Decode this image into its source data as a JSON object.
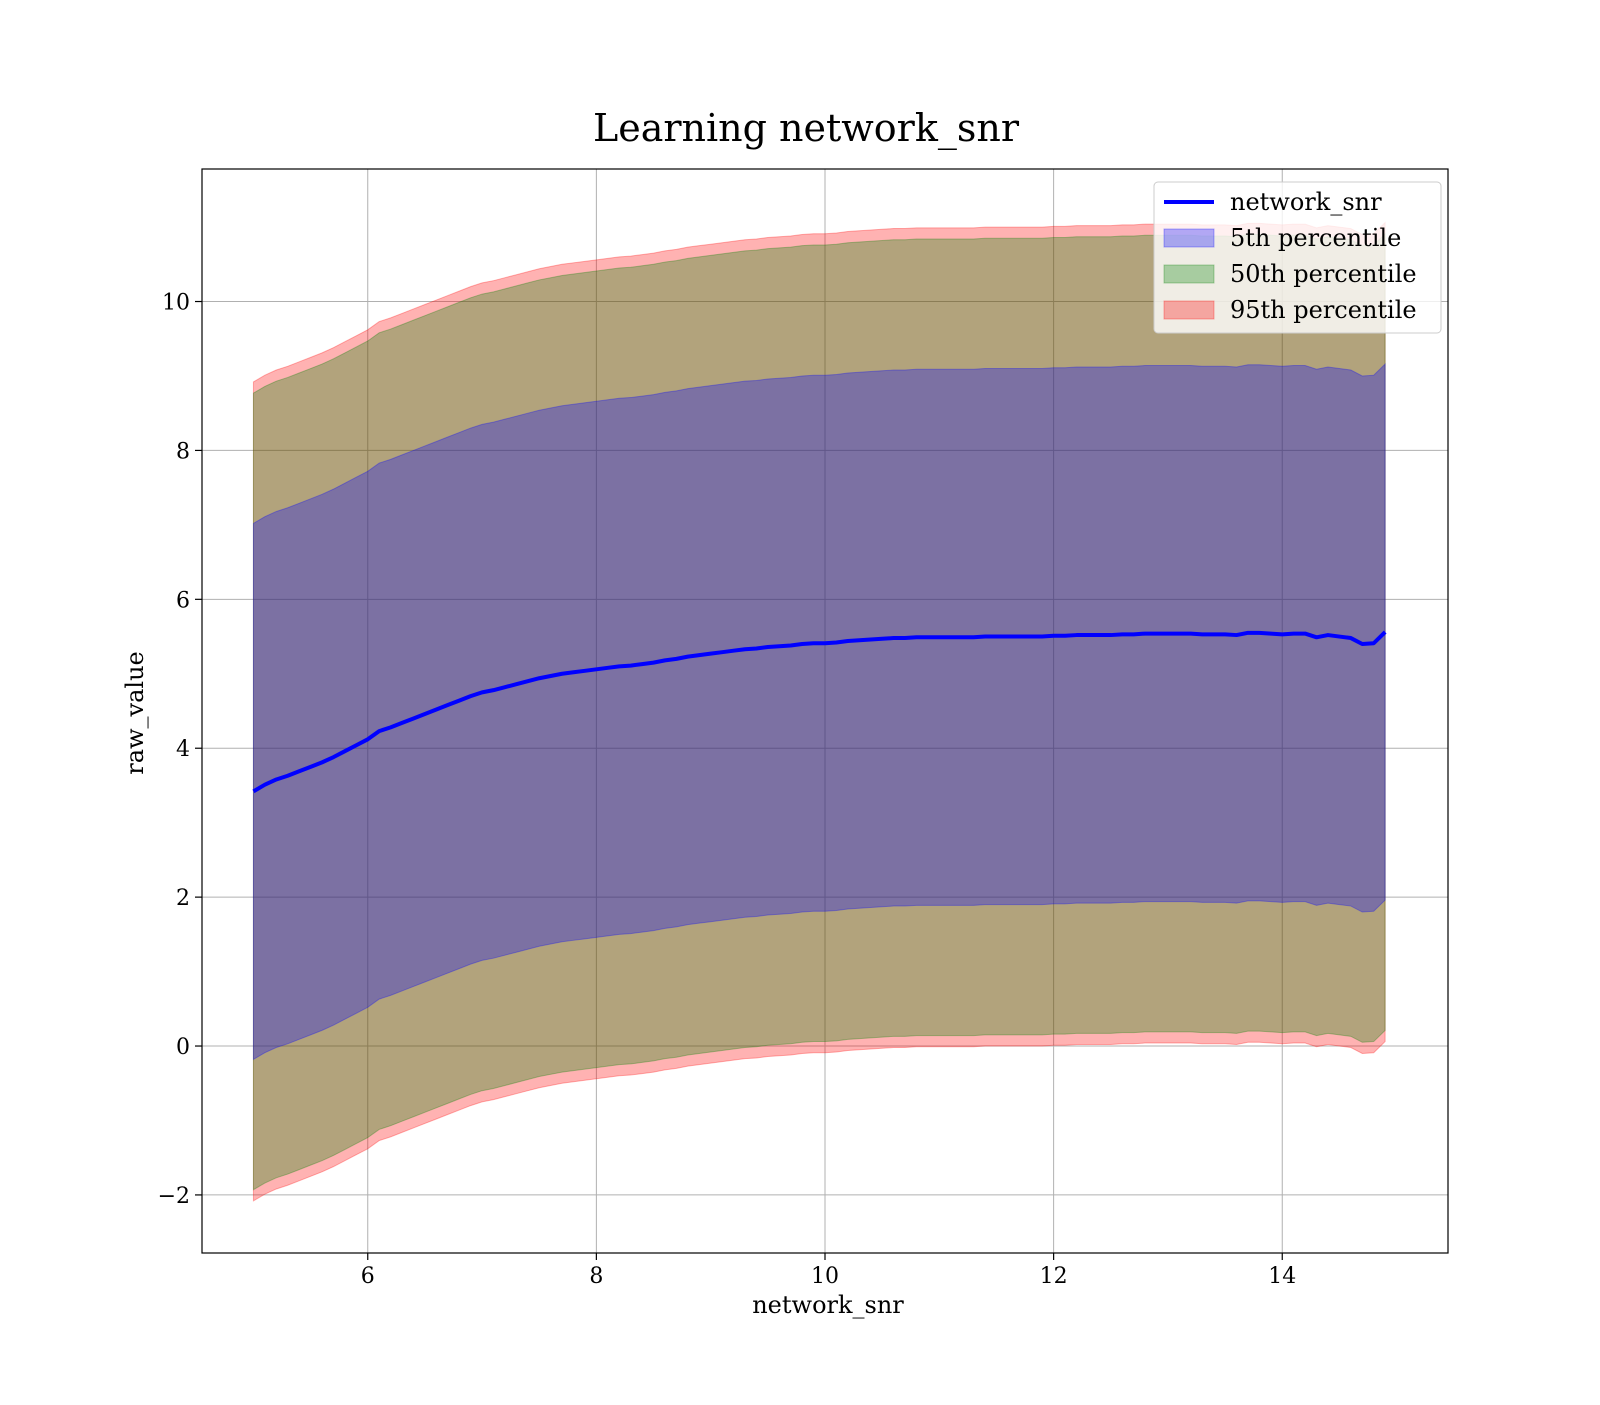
{
  "chart_data": {
    "type": "area",
    "title": "Learning network_snr",
    "xlabel": "network_snr",
    "ylabel": "raw_value",
    "xlim": [
      4.55,
      15.45
    ],
    "ylim": [
      -2.78,
      11.78
    ],
    "xticks": [
      6,
      8,
      10,
      12,
      14
    ],
    "yticks": [
      -2,
      0,
      2,
      4,
      6,
      8,
      10
    ],
    "xtick_labels": [
      "6",
      "8",
      "10",
      "12",
      "14"
    ],
    "ytick_labels": [
      "−2",
      "0",
      "2",
      "4",
      "6",
      "8",
      "10"
    ],
    "grid": true,
    "legend_position": "top-right",
    "x": [
      5.0,
      5.1,
      5.2,
      5.3,
      5.4,
      5.5,
      5.6,
      5.7,
      5.8,
      5.9,
      6.0,
      6.1,
      6.2,
      6.3,
      6.4,
      6.5,
      6.6,
      6.7,
      6.8,
      6.9,
      7.0,
      7.1,
      7.2,
      7.3,
      7.4,
      7.5,
      7.6,
      7.7,
      7.8,
      7.9,
      8.0,
      8.1,
      8.2,
      8.3,
      8.4,
      8.5,
      8.6,
      8.7,
      8.8,
      8.9,
      9.0,
      9.1,
      9.2,
      9.3,
      9.4,
      9.5,
      9.6,
      9.7,
      9.8,
      9.9,
      10.0,
      10.1,
      10.2,
      10.3,
      10.4,
      10.5,
      10.6,
      10.7,
      10.8,
      10.9,
      11.0,
      11.1,
      11.2,
      11.3,
      11.4,
      11.5,
      11.6,
      11.7,
      11.8,
      11.9,
      12.0,
      12.1,
      12.2,
      12.3,
      12.4,
      12.5,
      12.6,
      12.7,
      12.8,
      12.9,
      13.0,
      13.1,
      13.2,
      13.3,
      13.4,
      13.5,
      13.6,
      13.7,
      13.8,
      13.9,
      14.0,
      14.1,
      14.2,
      14.3,
      14.4,
      14.5,
      14.6,
      14.7,
      14.8,
      14.9
    ],
    "series": [
      {
        "name": "network_snr",
        "kind": "line",
        "color": "#0000ff",
        "values": [
          3.42,
          3.51,
          3.58,
          3.63,
          3.69,
          3.75,
          3.81,
          3.88,
          3.96,
          4.04,
          4.12,
          4.23,
          4.28,
          4.34,
          4.4,
          4.46,
          4.52,
          4.58,
          4.64,
          4.7,
          4.75,
          4.78,
          4.82,
          4.86,
          4.9,
          4.94,
          4.97,
          5.0,
          5.02,
          5.04,
          5.06,
          5.08,
          5.1,
          5.11,
          5.13,
          5.15,
          5.18,
          5.2,
          5.23,
          5.25,
          5.27,
          5.29,
          5.31,
          5.33,
          5.34,
          5.36,
          5.37,
          5.38,
          5.4,
          5.41,
          5.41,
          5.42,
          5.44,
          5.45,
          5.46,
          5.47,
          5.48,
          5.48,
          5.49,
          5.49,
          5.49,
          5.49,
          5.49,
          5.49,
          5.5,
          5.5,
          5.5,
          5.5,
          5.5,
          5.5,
          5.51,
          5.51,
          5.52,
          5.52,
          5.52,
          5.52,
          5.53,
          5.53,
          5.54,
          5.54,
          5.54,
          5.54,
          5.54,
          5.53,
          5.53,
          5.53,
          5.52,
          5.55,
          5.55,
          5.54,
          5.53,
          5.54,
          5.54,
          5.49,
          5.52,
          5.5,
          5.48,
          5.4,
          5.41,
          5.56
        ]
      },
      {
        "name": "5th percentile",
        "kind": "band",
        "color": "#0000ff",
        "half_width": 3.6
      },
      {
        "name": "50th percentile",
        "kind": "band",
        "color": "#008000",
        "half_width": 5.35
      },
      {
        "name": "95th percentile",
        "kind": "band",
        "color": "#ff0000",
        "half_width": 5.5
      }
    ]
  }
}
